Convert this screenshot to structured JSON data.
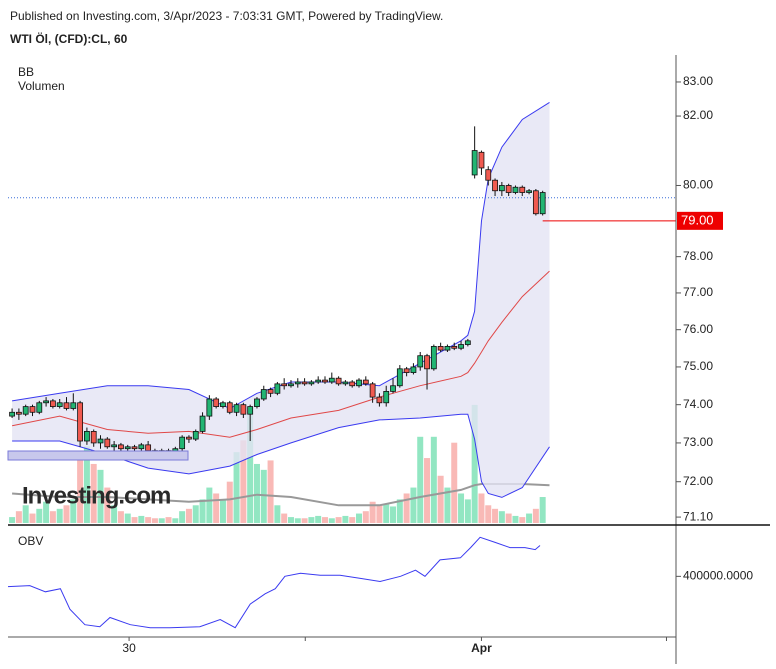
{
  "chart_data": {
    "type": "candlestick",
    "published": "Published on Investing.com, 3/Apr/2023 - 7:03:31 GMT, Powered by TradingView.",
    "title": "WTI Öl, (CFD):CL, 60",
    "legend": [
      "BB",
      "Volumen"
    ],
    "lower_pane_title": "OBV",
    "logo": "Investing.com",
    "log_scale": true,
    "ylim": [
      70.9,
      83.8
    ],
    "yticks": [
      {
        "value": 83,
        "label": "83.00"
      },
      {
        "value": 82,
        "label": "82.00"
      },
      {
        "value": 80,
        "label": "80.00"
      },
      {
        "value": 78,
        "label": "78.00"
      },
      {
        "value": 77,
        "label": "77.00"
      },
      {
        "value": 76,
        "label": "76.00"
      },
      {
        "value": 75,
        "label": "75.00"
      },
      {
        "value": 74,
        "label": "74.00"
      },
      {
        "value": 73,
        "label": "73.00"
      },
      {
        "value": 72,
        "label": "72.00"
      },
      {
        "value": 71.1,
        "label": "71.10"
      }
    ],
    "xlim": [
      -0.6,
      97.6
    ],
    "xticks": [
      {
        "value": 17.2,
        "label": "30"
      },
      {
        "value": 69,
        "label": "Apr"
      }
    ],
    "xminor": [
      43.1,
      96.2
    ],
    "price_label": {
      "value": 79,
      "label": "79.00",
      "color": "#ee0000"
    },
    "last_line": 79.65,
    "up_color": "#22b573",
    "down_color": "#f05a50",
    "volume_up_color": "#92e6c2",
    "volume_down_color": "#f9b9b6",
    "open": [
      73.7,
      73.8,
      73.75,
      73.95,
      73.8,
      74.05,
      74.1,
      73.95,
      74.05,
      73.9,
      74.05,
      73.05,
      73.3,
      73.0,
      73.1,
      72.9,
      72.95,
      72.85,
      72.9,
      72.85,
      72.95,
      72.8,
      72.75,
      72.8,
      72.75,
      72.85,
      73.15,
      73.1,
      73.3,
      73.7,
      74.15,
      73.95,
      74.05,
      73.8,
      74.0,
      73.75,
      73.95,
      74.15,
      74.4,
      74.3,
      74.55,
      74.5,
      74.55,
      74.6,
      74.55,
      74.6,
      74.65,
      74.6,
      74.7,
      74.55,
      74.6,
      74.5,
      74.65,
      74.55,
      74.2,
      74.05,
      74.35,
      74.5,
      74.95,
      74.85,
      75.0,
      75.3,
      74.95,
      75.55,
      75.45,
      75.55,
      75.5,
      75.6,
      80.3,
      80.95,
      80.45,
      80.15,
      79.85,
      80.0,
      79.8,
      79.95,
      79.8,
      79.85,
      79.2
    ],
    "high": [
      73.9,
      73.9,
      74.0,
      74.0,
      74.1,
      74.2,
      74.15,
      74.15,
      74.2,
      74.3,
      74.1,
      73.4,
      73.35,
      73.2,
      73.15,
      73.05,
      73.0,
      72.95,
      72.95,
      73.0,
      73.05,
      72.85,
      72.85,
      72.85,
      72.9,
      73.2,
      73.2,
      73.35,
      73.8,
      74.25,
      74.2,
      74.1,
      74.1,
      74.05,
      74.05,
      74.0,
      74.2,
      74.5,
      74.45,
      74.6,
      74.7,
      74.65,
      74.7,
      74.7,
      74.65,
      74.75,
      74.75,
      74.85,
      74.75,
      74.65,
      74.65,
      74.7,
      74.75,
      74.6,
      74.3,
      74.5,
      74.7,
      75.05,
      75.0,
      75.1,
      75.4,
      75.35,
      75.6,
      75.65,
      75.6,
      75.65,
      75.7,
      75.75,
      81.7,
      81.0,
      80.55,
      80.2,
      80.1,
      80.05,
      80.0,
      80.0,
      79.9,
      79.9,
      79.85
    ],
    "low": [
      73.65,
      73.6,
      73.7,
      73.7,
      73.75,
      73.95,
      73.9,
      73.9,
      73.85,
      73.85,
      72.9,
      72.95,
      72.9,
      72.85,
      72.85,
      72.8,
      72.8,
      72.8,
      72.8,
      72.8,
      72.75,
      72.7,
      72.7,
      72.7,
      72.7,
      72.8,
      73.0,
      73.05,
      73.25,
      73.6,
      73.9,
      73.9,
      73.75,
      73.7,
      73.65,
      73.05,
      73.9,
      74.1,
      74.2,
      74.25,
      74.4,
      74.45,
      74.45,
      74.5,
      74.5,
      74.55,
      74.55,
      74.55,
      74.5,
      74.5,
      74.45,
      74.45,
      74.5,
      74.05,
      73.95,
      73.95,
      74.3,
      74.45,
      74.75,
      74.8,
      74.9,
      74.4,
      74.9,
      75.4,
      75.4,
      75.45,
      75.45,
      75.55,
      80.2,
      80.3,
      80.0,
      79.7,
      79.7,
      79.7,
      79.75,
      79.7,
      79.75,
      79.15,
      79.15
    ],
    "close": [
      73.8,
      73.75,
      73.95,
      73.8,
      74.05,
      74.1,
      73.95,
      74.05,
      73.9,
      74.05,
      73.05,
      73.3,
      73.0,
      73.1,
      72.9,
      72.95,
      72.85,
      72.9,
      72.85,
      72.95,
      72.8,
      72.75,
      72.8,
      72.75,
      72.85,
      73.15,
      73.1,
      73.3,
      73.7,
      74.15,
      73.95,
      74.05,
      73.8,
      74.0,
      73.75,
      73.95,
      74.15,
      74.4,
      74.3,
      74.55,
      74.5,
      74.55,
      74.6,
      74.55,
      74.6,
      74.65,
      74.6,
      74.7,
      74.55,
      74.6,
      74.5,
      74.65,
      74.55,
      74.2,
      74.05,
      74.35,
      74.5,
      74.95,
      74.85,
      75.0,
      75.3,
      74.95,
      75.55,
      75.45,
      75.55,
      75.5,
      75.6,
      75.7,
      81.0,
      80.5,
      80.15,
      79.85,
      80.0,
      79.8,
      79.95,
      79.8,
      79.85,
      79.2,
      79.8
    ],
    "volume": [
      5,
      10,
      15,
      8,
      12,
      18,
      10,
      12,
      15,
      20,
      60,
      65,
      50,
      45,
      30,
      15,
      10,
      8,
      5,
      6,
      5,
      4,
      4,
      5,
      4,
      10,
      12,
      15,
      20,
      30,
      25,
      20,
      35,
      60,
      70,
      95,
      50,
      45,
      53,
      15,
      8,
      5,
      4,
      4,
      5,
      6,
      5,
      4,
      5,
      6,
      5,
      8,
      10,
      18,
      15,
      16,
      14,
      20,
      25,
      30,
      73,
      55,
      73,
      40,
      30,
      68,
      25,
      20,
      100,
      25,
      15,
      12,
      10,
      8,
      6,
      5,
      8,
      12,
      22
    ],
    "volume_ylim": [
      0,
      398
    ],
    "volume_ma": {
      "color": "#999999",
      "x": [
        0,
        7,
        14,
        20,
        26,
        32,
        36,
        41,
        48,
        54,
        60,
        66,
        67,
        68,
        69,
        70,
        72,
        75,
        79
      ],
      "values": [
        25,
        22,
        22,
        20,
        18,
        20,
        24,
        22,
        15,
        15,
        22,
        28,
        30,
        32,
        33,
        33,
        33,
        33,
        32
      ]
    },
    "bollinger": {
      "fill": "#e4e4f4",
      "band_color": "#3a3af0",
      "middle_color": "#e04848",
      "x": [
        0,
        7,
        14,
        20,
        26,
        32,
        36,
        41,
        48,
        54,
        60,
        66,
        67,
        68,
        69,
        70,
        72,
        75,
        79
      ],
      "upper": [
        74.1,
        74.3,
        74.5,
        74.5,
        74.4,
        73.9,
        74.3,
        74.6,
        74.6,
        74.5,
        75.1,
        75.7,
        75.85,
        76.5,
        79.0,
        80.2,
        81.1,
        81.9,
        82.4
      ],
      "middle": [
        73.45,
        73.7,
        73.35,
        73.25,
        73.3,
        73.15,
        73.35,
        73.65,
        73.85,
        74.2,
        74.5,
        74.75,
        74.85,
        75.1,
        75.4,
        75.7,
        76.2,
        76.9,
        77.6
      ],
      "lower": [
        73.05,
        73.05,
        72.7,
        72.35,
        72.2,
        72.4,
        72.7,
        73.0,
        73.4,
        73.6,
        73.65,
        73.75,
        73.75,
        73.1,
        72.0,
        71.7,
        71.6,
        71.85,
        72.9
      ]
    },
    "obv": {
      "color": "#3a3af0",
      "ylim": [
        164000,
        592000
      ],
      "yticks": [
        {
          "value": 400000,
          "label": "400000.0000"
        }
      ],
      "x": [
        -0.6,
        2.6,
        4.9,
        7.1,
        8.5,
        10.7,
        12.9,
        14.4,
        17.4,
        20.3,
        23.2,
        27.6,
        30.6,
        32.8,
        35,
        37.2,
        38.7,
        40.1,
        42.4,
        45.3,
        48.2,
        51.2,
        54.1,
        57.1,
        59.3,
        60.7,
        62.9,
        65.9,
        67.4,
        68.8,
        71,
        73.2,
        75.4,
        76.9,
        77.6
      ],
      "values": [
        360000,
        364000,
        340000,
        352000,
        272000,
        212000,
        204000,
        240000,
        212000,
        200000,
        200000,
        204000,
        232000,
        200000,
        292000,
        332000,
        352000,
        400000,
        412000,
        404000,
        404000,
        392000,
        380000,
        400000,
        424000,
        400000,
        464000,
        472000,
        512000,
        552000,
        532000,
        512000,
        512000,
        504000,
        520000
      ]
    }
  }
}
